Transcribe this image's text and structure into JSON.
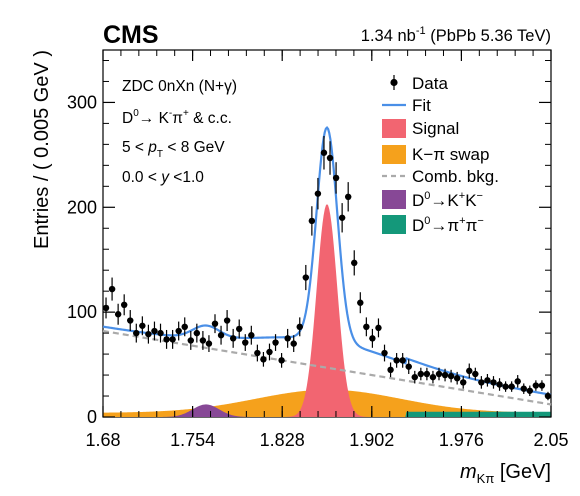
{
  "header": {
    "experiment": "CMS",
    "lumi_value": "1.34 nb",
    "lumi_exp": "-1",
    "lumi_system": "(PbPb 5.36 TeV)"
  },
  "chart_data": {
    "type": "scatter",
    "xlabel": "m",
    "xlabel_sub": "Kπ",
    "xlabel_unit": "[GeV]",
    "ylabel": "Entries / ( 0.005 GeV )",
    "xlim": [
      1.68,
      2.05
    ],
    "ylim": [
      0,
      350
    ],
    "x_ticks": [
      1.68,
      1.754,
      1.828,
      1.902,
      1.976,
      2.05
    ],
    "x_tick_labels": [
      "1.68",
      "1.754",
      "1.828",
      "1.902",
      "1.976",
      "2.05"
    ],
    "y_ticks": [
      0,
      100,
      200,
      300
    ],
    "y_tick_labels": [
      "0",
      "100",
      "200",
      "300"
    ],
    "annotations": [
      {
        "text": "ZDC 0nXn (N+γ)"
      },
      {
        "main": "D",
        "sup": "0",
        "rest": "→ K",
        "sup2": "-",
        "rest2": "π",
        "sup3": "+",
        "tail": " & c.c."
      },
      {
        "pre": "5 < ",
        "italic": "p",
        "sub": "T",
        "post": " < 8 GeV"
      },
      {
        "pre": "0.0 < ",
        "italic": "y",
        "post": " <1.0"
      }
    ],
    "legend": [
      {
        "kind": "marker",
        "label": "Data"
      },
      {
        "kind": "line",
        "label": "Fit",
        "color": "#4a8fe7"
      },
      {
        "kind": "box",
        "label": "Signal",
        "color": "#f26571"
      },
      {
        "kind": "box",
        "label": "K−π swap",
        "color": "#f5a11c"
      },
      {
        "kind": "dash",
        "label": "Comb. bkg.",
        "color": "#aaaaaa"
      },
      {
        "kind": "box",
        "label": "D⁰→K⁺K⁻",
        "color": "#874896"
      },
      {
        "kind": "box",
        "label": "D⁰→π⁺π⁻",
        "color": "#14987a"
      }
    ],
    "colors": {
      "fit": "#4a8fe7",
      "signal": "#f26571",
      "swap": "#f5a11c",
      "comb": "#aaaaaa",
      "kk": "#874896",
      "pipi": "#14987a"
    },
    "data_points": {
      "x": [
        1.6825,
        1.6875,
        1.6925,
        1.6975,
        1.7025,
        1.7075,
        1.7125,
        1.7175,
        1.7225,
        1.7275,
        1.7325,
        1.7375,
        1.7425,
        1.7475,
        1.7525,
        1.7575,
        1.7625,
        1.7675,
        1.7725,
        1.7775,
        1.7825,
        1.7875,
        1.7925,
        1.7975,
        1.8025,
        1.8075,
        1.8125,
        1.8175,
        1.8225,
        1.8275,
        1.8325,
        1.8375,
        1.8425,
        1.8475,
        1.8525,
        1.8575,
        1.8625,
        1.8675,
        1.8725,
        1.8775,
        1.8825,
        1.8875,
        1.8925,
        1.8975,
        1.9025,
        1.9075,
        1.9125,
        1.9175,
        1.9225,
        1.9275,
        1.9325,
        1.9375,
        1.9425,
        1.9475,
        1.9525,
        1.9575,
        1.9625,
        1.9675,
        1.9725,
        1.9775,
        1.9825,
        1.9875,
        1.9925,
        1.9975,
        2.0025,
        2.0075,
        2.0125,
        2.0175,
        2.0225,
        2.0275,
        2.0325,
        2.0375,
        2.0425,
        2.0475
      ],
      "y": [
        104,
        122,
        98,
        107,
        92,
        80,
        87,
        79,
        82,
        80,
        74,
        74,
        82,
        86,
        73,
        80,
        73,
        70,
        89,
        78,
        92,
        75,
        84,
        71,
        78,
        61,
        55,
        62,
        71,
        54,
        75,
        70,
        86,
        133,
        187,
        213,
        252,
        247,
        228,
        190,
        210,
        147,
        109,
        86,
        75,
        85,
        61,
        45,
        54,
        54,
        48,
        38,
        41,
        41,
        38,
        41,
        40,
        39,
        37,
        33,
        44,
        41,
        33,
        35,
        33,
        31,
        29,
        29,
        34,
        27,
        25,
        30,
        30,
        20
      ],
      "err": [
        10,
        11,
        10,
        10,
        10,
        9,
        9,
        9,
        9,
        9,
        9,
        9,
        9,
        9,
        9,
        9,
        9,
        8,
        9,
        9,
        10,
        9,
        9,
        8,
        9,
        8,
        7,
        8,
        8,
        7,
        9,
        8,
        9,
        12,
        14,
        15,
        16,
        16,
        15,
        14,
        14,
        12,
        10,
        9,
        9,
        9,
        8,
        7,
        7,
        7,
        7,
        6,
        6,
        6,
        6,
        6,
        6,
        6,
        6,
        6,
        7,
        6,
        6,
        6,
        6,
        6,
        5,
        5,
        6,
        5,
        5,
        5,
        5,
        4
      ]
    },
    "components": {
      "signal": {
        "mean": 1.865,
        "sigma": 0.0085,
        "amplitude": 203
      },
      "comb": {
        "at_min": 82,
        "at_max": 12
      },
      "swap": {
        "mean": 1.866,
        "sigma": 0.06,
        "amplitude": 22,
        "floor": 4
      },
      "kk": {
        "mean": 1.765,
        "sigma": 0.011,
        "amplitude": 12
      },
      "pipi": {
        "from": 1.93,
        "to": 2.05,
        "level": 5
      }
    }
  }
}
